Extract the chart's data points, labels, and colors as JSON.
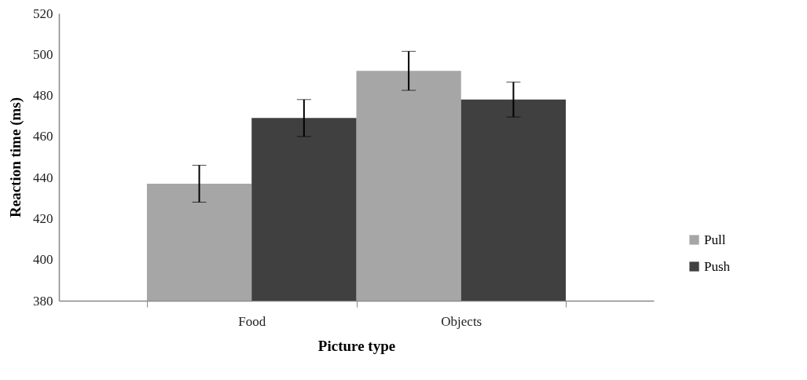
{
  "chart_data": {
    "type": "bar",
    "xlabel": "Picture type",
    "ylabel": "Reaction time (ms)",
    "categories": [
      "Food",
      "Objects"
    ],
    "series": [
      {
        "name": "Pull",
        "color": "#a6a6a6",
        "values": [
          437,
          492
        ],
        "errors": [
          9,
          9.5
        ]
      },
      {
        "name": "Push",
        "color": "#404040",
        "values": [
          469,
          478
        ],
        "errors": [
          9,
          8.5
        ]
      }
    ],
    "ylim": [
      380,
      520
    ],
    "yticks": [
      380,
      400,
      420,
      440,
      460,
      480,
      500,
      520
    ],
    "grid": false,
    "legend": "right"
  }
}
